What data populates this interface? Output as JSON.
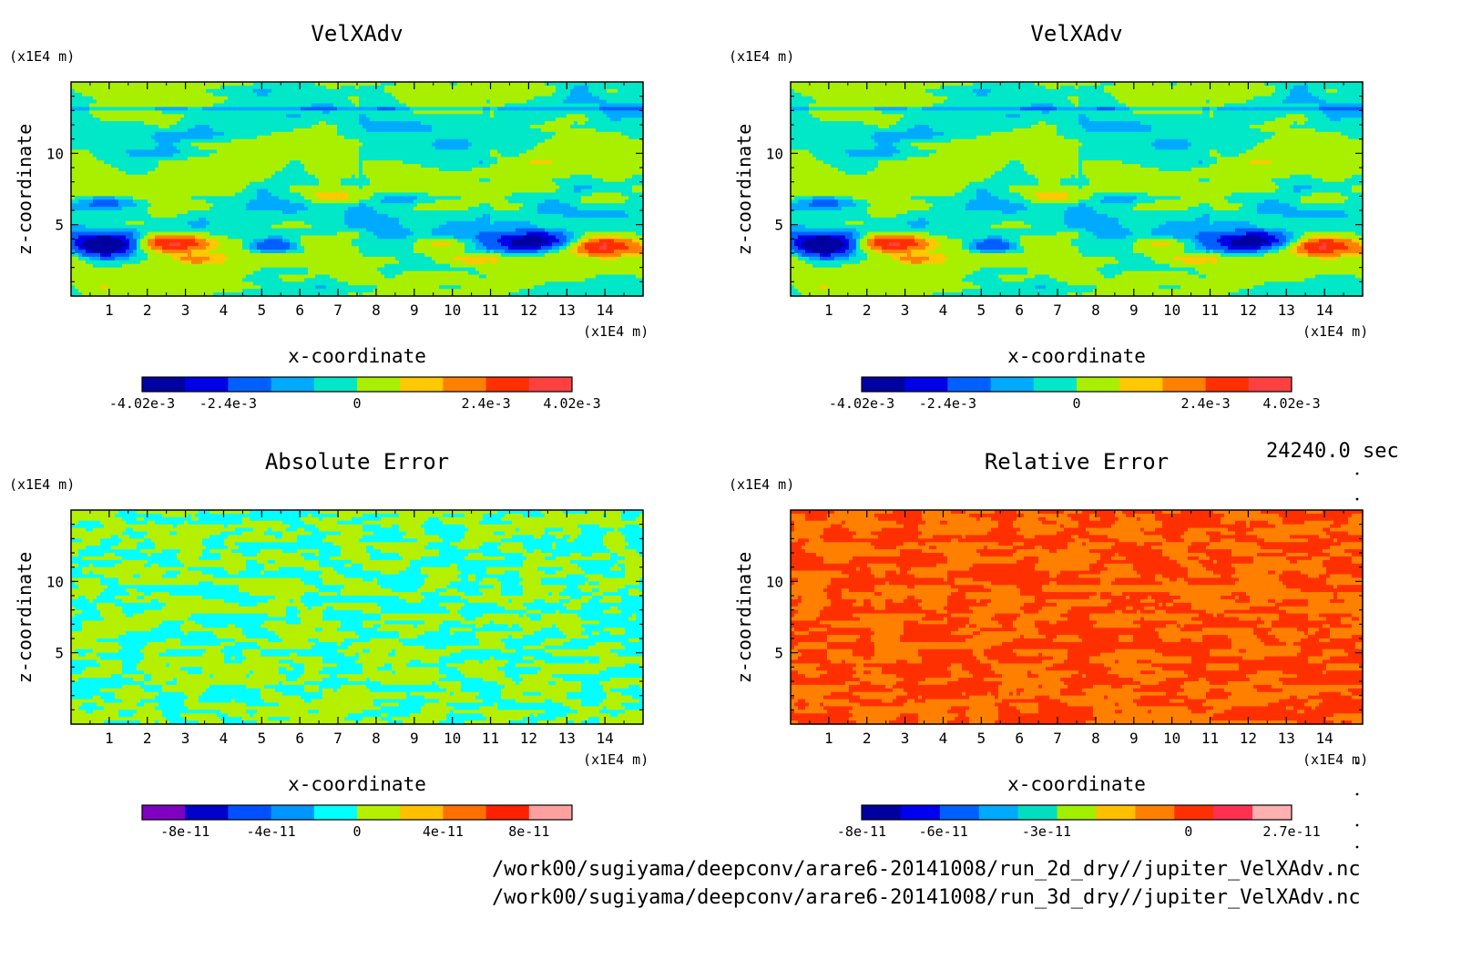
{
  "chart_data": [
    {
      "type": "heatmap",
      "title": "VelXAdv",
      "xlabel": "x-coordinate",
      "ylabel": "z-coordinate",
      "x_unit": "(x1E4 m)",
      "y_unit": "(x1E4 m)",
      "x_ticks": [
        "1",
        "2",
        "3",
        "4",
        "5",
        "6",
        "7",
        "8",
        "9",
        "10",
        "11",
        "12",
        "13",
        "14"
      ],
      "y_ticks": [
        "5",
        "10"
      ],
      "xlim": [
        0,
        15
      ],
      "ylim": [
        0,
        15
      ],
      "field": "velocity-advection",
      "colorbar": {
        "colors": [
          "#0000a0",
          "#0000e6",
          "#0060ff",
          "#00aaff",
          "#00e8c8",
          "#a8f000",
          "#ffc800",
          "#ff8000",
          "#ff3000",
          "#ff4040"
        ],
        "tick_labels": [
          "-4.02e-3",
          "-2.4e-3",
          "0",
          "2.4e-3",
          "4.02e-3"
        ]
      }
    },
    {
      "type": "heatmap",
      "title": "VelXAdv",
      "xlabel": "x-coordinate",
      "ylabel": "z-coordinate",
      "x_unit": "(x1E4 m)",
      "y_unit": "(x1E4 m)",
      "x_ticks": [
        "1",
        "2",
        "3",
        "4",
        "5",
        "6",
        "7",
        "8",
        "9",
        "10",
        "11",
        "12",
        "13",
        "14"
      ],
      "y_ticks": [
        "5",
        "10"
      ],
      "xlim": [
        0,
        15
      ],
      "ylim": [
        0,
        15
      ],
      "field": "velocity-advection",
      "colorbar": {
        "colors": [
          "#0000a0",
          "#0000e6",
          "#0060ff",
          "#00aaff",
          "#00e8c8",
          "#a8f000",
          "#ffc800",
          "#ff8000",
          "#ff3000",
          "#ff4040"
        ],
        "tick_labels": [
          "-4.02e-3",
          "-2.4e-3",
          "0",
          "2.4e-3",
          "4.02e-3"
        ]
      }
    },
    {
      "type": "heatmap",
      "title": "Absolute Error",
      "xlabel": "x-coordinate",
      "ylabel": "z-coordinate",
      "x_unit": "(x1E4 m)",
      "y_unit": "(x1E4 m)",
      "x_ticks": [
        "1",
        "2",
        "3",
        "4",
        "5",
        "6",
        "7",
        "8",
        "9",
        "10",
        "11",
        "12",
        "13",
        "14"
      ],
      "y_ticks": [
        "5",
        "10"
      ],
      "xlim": [
        0,
        15
      ],
      "ylim": [
        0,
        15
      ],
      "field": "absolute-error",
      "colorbar": {
        "colors": [
          "#8000c0",
          "#0000c8",
          "#0050ff",
          "#0096ff",
          "#00ffff",
          "#b4f000",
          "#ffc000",
          "#ff7000",
          "#ff2000",
          "#ffa0a0"
        ],
        "tick_labels": [
          "-8e-11",
          "-4e-11",
          "0",
          "4e-11",
          "8e-11"
        ]
      }
    },
    {
      "type": "heatmap",
      "title": "Relative Error",
      "xlabel": "x-coordinate",
      "ylabel": "z-coordinate",
      "x_unit": "(x1E4 m)",
      "y_unit": "(x1E4 m)",
      "x_ticks": [
        "1",
        "2",
        "3",
        "4",
        "5",
        "6",
        "7",
        "8",
        "9",
        "10",
        "11",
        "12",
        "13",
        "14"
      ],
      "y_ticks": [
        "5",
        "10"
      ],
      "xlim": [
        0,
        15
      ],
      "ylim": [
        0,
        15
      ],
      "field": "relative-error",
      "colorbar": {
        "colors": [
          "#0000a0",
          "#0000f0",
          "#0060ff",
          "#00aaff",
          "#00e0c0",
          "#a0f000",
          "#ffc000",
          "#ff8000",
          "#ff3000",
          "#ff3050",
          "#ffb0b0"
        ],
        "tick_labels": [
          "-8e-11",
          "-6e-11",
          "-3e-11",
          "0",
          "2.7e-11"
        ]
      }
    }
  ],
  "time_label": "24240.0 sec",
  "file_paths": [
    "/work00/sugiyama/deepconv/arare6-20141008/run_2d_dry//jupiter_VelXAdv.nc",
    "/work00/sugiyama/deepconv/arare6-20141008/run_3d_dry//jupiter_VelXAdv.nc"
  ]
}
